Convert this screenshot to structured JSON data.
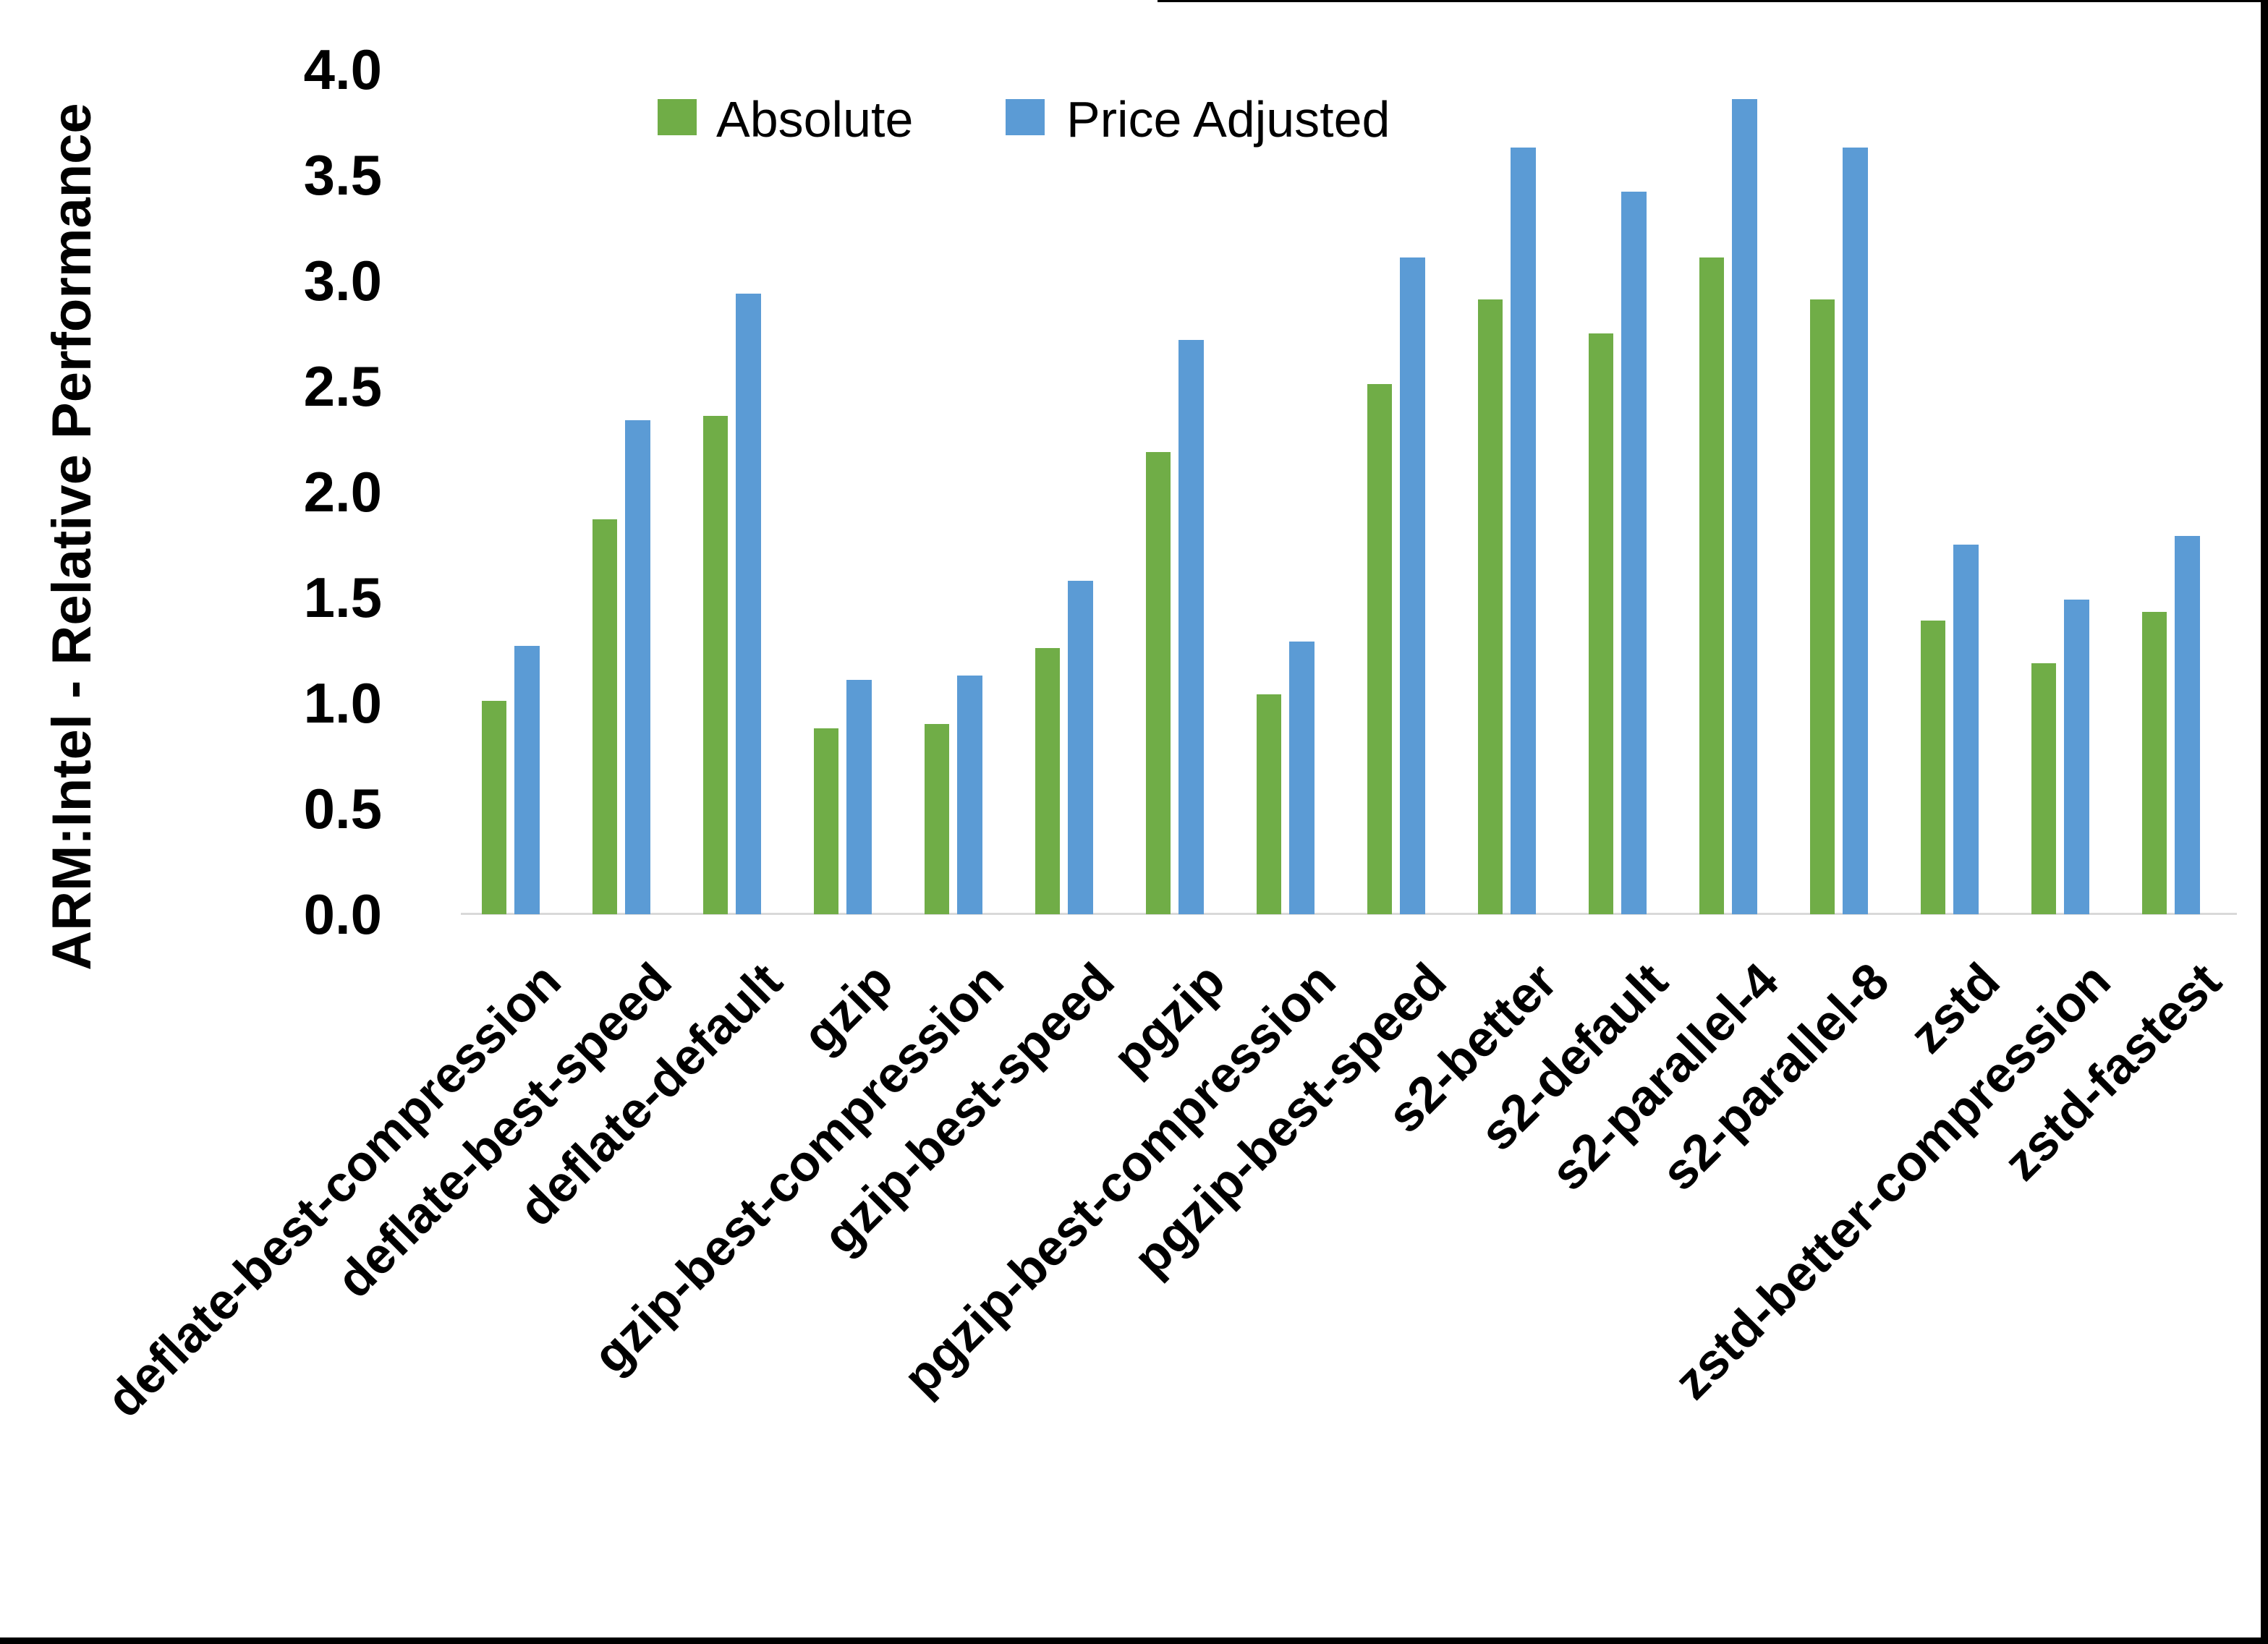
{
  "chart_data": {
    "type": "bar",
    "title": "",
    "xlabel": "",
    "ylabel": "ARM:Intel - Relative Performance",
    "ylim": [
      0.0,
      4.0
    ],
    "ytick_step": 0.5,
    "ytick_labels": [
      "0.0",
      "0.5",
      "1.0",
      "1.5",
      "2.0",
      "2.5",
      "3.0",
      "3.5",
      "4.0"
    ],
    "grid": false,
    "legend_position": "top-center",
    "categories": [
      "deflate-best-compression",
      "deflate-best-speed",
      "deflate-default",
      "gzip",
      "gzip-best-compression",
      "gzip-best-speed",
      "pgzip",
      "pgzip-best-compression",
      "pgzip-best-speed",
      "s2-better",
      "s2-default",
      "s2-parallel-4",
      "s2-parallel-8",
      "zstd",
      "zstd-better-compression",
      "zstd-fastest"
    ],
    "series": [
      {
        "name": "Absolute",
        "color": "#70AD47",
        "values": [
          1.01,
          1.87,
          2.36,
          0.88,
          0.9,
          1.26,
          2.19,
          1.04,
          2.51,
          2.91,
          2.75,
          3.11,
          2.91,
          1.39,
          1.19,
          1.43
        ]
      },
      {
        "name": "Price Adjusted",
        "color": "#5B9BD5",
        "values": [
          1.27,
          2.34,
          2.94,
          1.11,
          1.13,
          1.58,
          2.72,
          1.29,
          3.11,
          3.63,
          3.42,
          3.86,
          3.63,
          1.75,
          1.49,
          1.79
        ]
      }
    ]
  },
  "colors": {
    "absolute": "#70AD47",
    "price_adjusted": "#5B9BD5",
    "axis_line": "#D9D9D9",
    "border": "#000000"
  }
}
